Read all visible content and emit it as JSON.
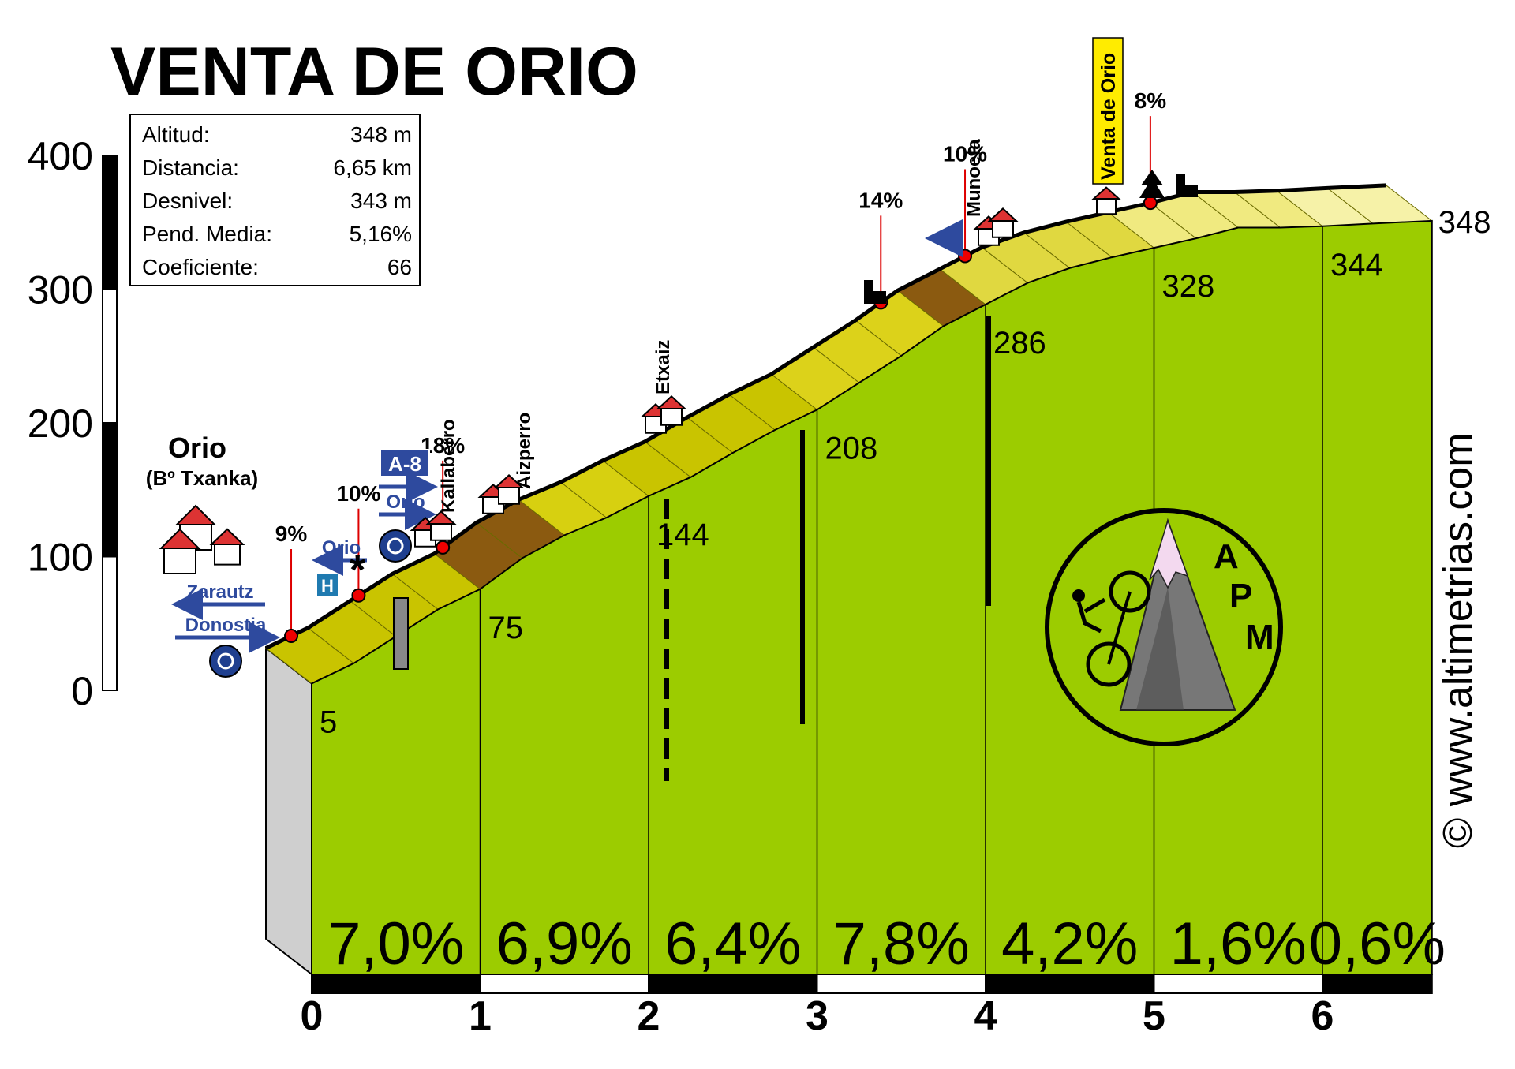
{
  "chart_data": {
    "type": "area",
    "title": "VENTA DE ORIO",
    "info_box": [
      {
        "label": "Altitud:",
        "value": "348 m"
      },
      {
        "label": "Distancia:",
        "value": "6,65 km"
      },
      {
        "label": "Desnivel:",
        "value": "343 m"
      },
      {
        "label": "Pend. Media:",
        "value": "5,16%"
      },
      {
        "label": "Coeficiente:",
        "value": "66"
      }
    ],
    "y_ticks": [
      "400",
      "300",
      "200",
      "100",
      "0"
    ],
    "x_ticks": [
      "0",
      "1",
      "2",
      "3",
      "4",
      "5",
      "6"
    ],
    "xlim": [
      0,
      6.65
    ],
    "ylim": [
      0,
      400
    ],
    "profile": [
      {
        "km": 0,
        "alt": 5
      },
      {
        "km": 0.25,
        "alt": 20
      },
      {
        "km": 0.5,
        "alt": 40
      },
      {
        "km": 0.75,
        "alt": 60
      },
      {
        "km": 1,
        "alt": 75
      },
      {
        "km": 1.25,
        "alt": 98
      },
      {
        "km": 1.5,
        "alt": 115
      },
      {
        "km": 1.75,
        "alt": 128
      },
      {
        "km": 2,
        "alt": 144
      },
      {
        "km": 2.25,
        "alt": 158
      },
      {
        "km": 2.5,
        "alt": 176
      },
      {
        "km": 2.75,
        "alt": 193
      },
      {
        "km": 3,
        "alt": 208
      },
      {
        "km": 3.25,
        "alt": 228
      },
      {
        "km": 3.5,
        "alt": 248
      },
      {
        "km": 3.75,
        "alt": 270
      },
      {
        "km": 4,
        "alt": 286
      },
      {
        "km": 4.25,
        "alt": 302
      },
      {
        "km": 4.5,
        "alt": 313
      },
      {
        "km": 4.75,
        "alt": 321
      },
      {
        "km": 5,
        "alt": 328
      },
      {
        "km": 5.25,
        "alt": 335
      },
      {
        "km": 5.5,
        "alt": 343
      },
      {
        "km": 5.75,
        "alt": 343
      },
      {
        "km": 6,
        "alt": 344
      },
      {
        "km": 6.3,
        "alt": 346
      },
      {
        "km": 6.65,
        "alt": 348
      }
    ],
    "km_altitudes": [
      {
        "km": 0,
        "label": "5"
      },
      {
        "km": 1,
        "label": "75"
      },
      {
        "km": 2,
        "label": "144"
      },
      {
        "km": 3,
        "label": "208"
      },
      {
        "km": 4,
        "label": "286"
      },
      {
        "km": 5,
        "label": "328"
      },
      {
        "km": 6,
        "label": "344"
      },
      {
        "km": 6.65,
        "label": "348"
      }
    ],
    "segment_gradients": [
      "7,0%",
      "6,9%",
      "6,4%",
      "7,8%",
      "4,2%",
      "1,6%",
      "0,6%"
    ],
    "peak_gradients": [
      {
        "km": 0.15,
        "label": "9%"
      },
      {
        "km": 0.55,
        "label": "10%"
      },
      {
        "km": 1.05,
        "label": "18%"
      },
      {
        "km": 3.65,
        "label": "14%"
      },
      {
        "km": 4.15,
        "label": "10%"
      },
      {
        "km": 5.25,
        "label": "8%"
      }
    ],
    "places": [
      {
        "name": "Orio",
        "sub": "(Bº Txanka)"
      },
      {
        "name": "Kallaberro"
      },
      {
        "name": "Aizperro"
      },
      {
        "name": "Etxaiz"
      },
      {
        "name": "Munoeta"
      },
      {
        "name": "Venta de Orio"
      }
    ],
    "road_signs": {
      "a8": "A-8",
      "orio_1": "Orio",
      "orio_2": "Orio",
      "zarautz": "Zarautz",
      "donostia": "Donostia"
    },
    "logo_letters": "APM",
    "watermark": "© www.altimetrias.com"
  }
}
